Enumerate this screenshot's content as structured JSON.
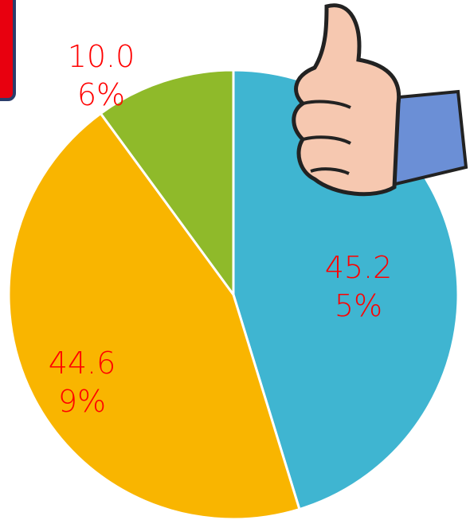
{
  "chart_data": {
    "type": "pie",
    "categories": [
      null,
      null,
      null
    ],
    "values": [
      45.25,
      44.69,
      10.06
    ],
    "value_labels": [
      "45.25%",
      "44.69%",
      "10.06%"
    ],
    "colors": [
      "#3fb5d1",
      "#f9b500",
      "#8fba2a"
    ]
  }
}
